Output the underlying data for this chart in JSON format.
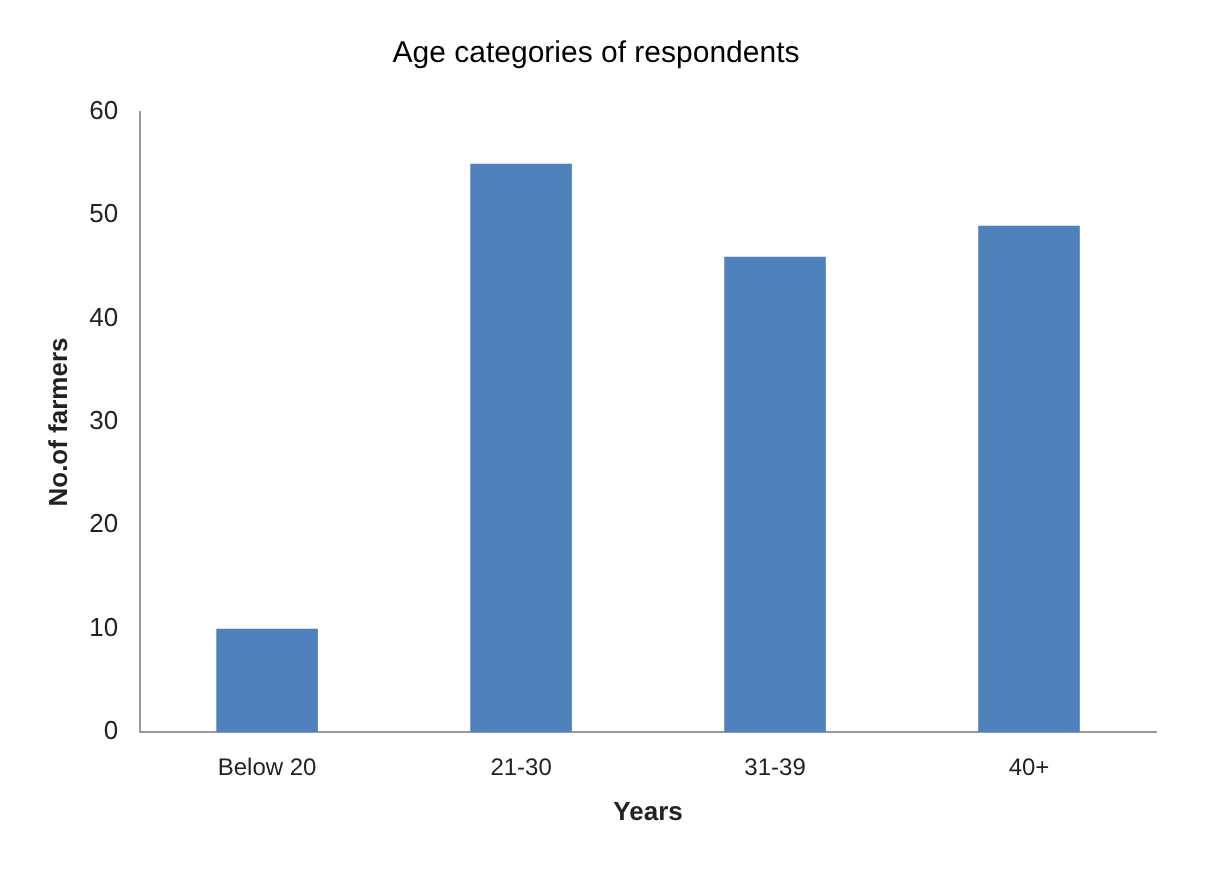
{
  "chart_data": {
    "type": "bar",
    "title": "Age categories of respondents",
    "xlabel": "Years",
    "ylabel": "No.of farmers",
    "categories": [
      "Below 20",
      "21-30",
      "31-39",
      "40+"
    ],
    "values": [
      10,
      55,
      46,
      49
    ],
    "color": "#4f81bd",
    "ylim": [
      0,
      60
    ],
    "yticks": [
      0,
      10,
      20,
      30,
      40,
      50,
      60
    ],
    "grid": false,
    "legend": false
  }
}
